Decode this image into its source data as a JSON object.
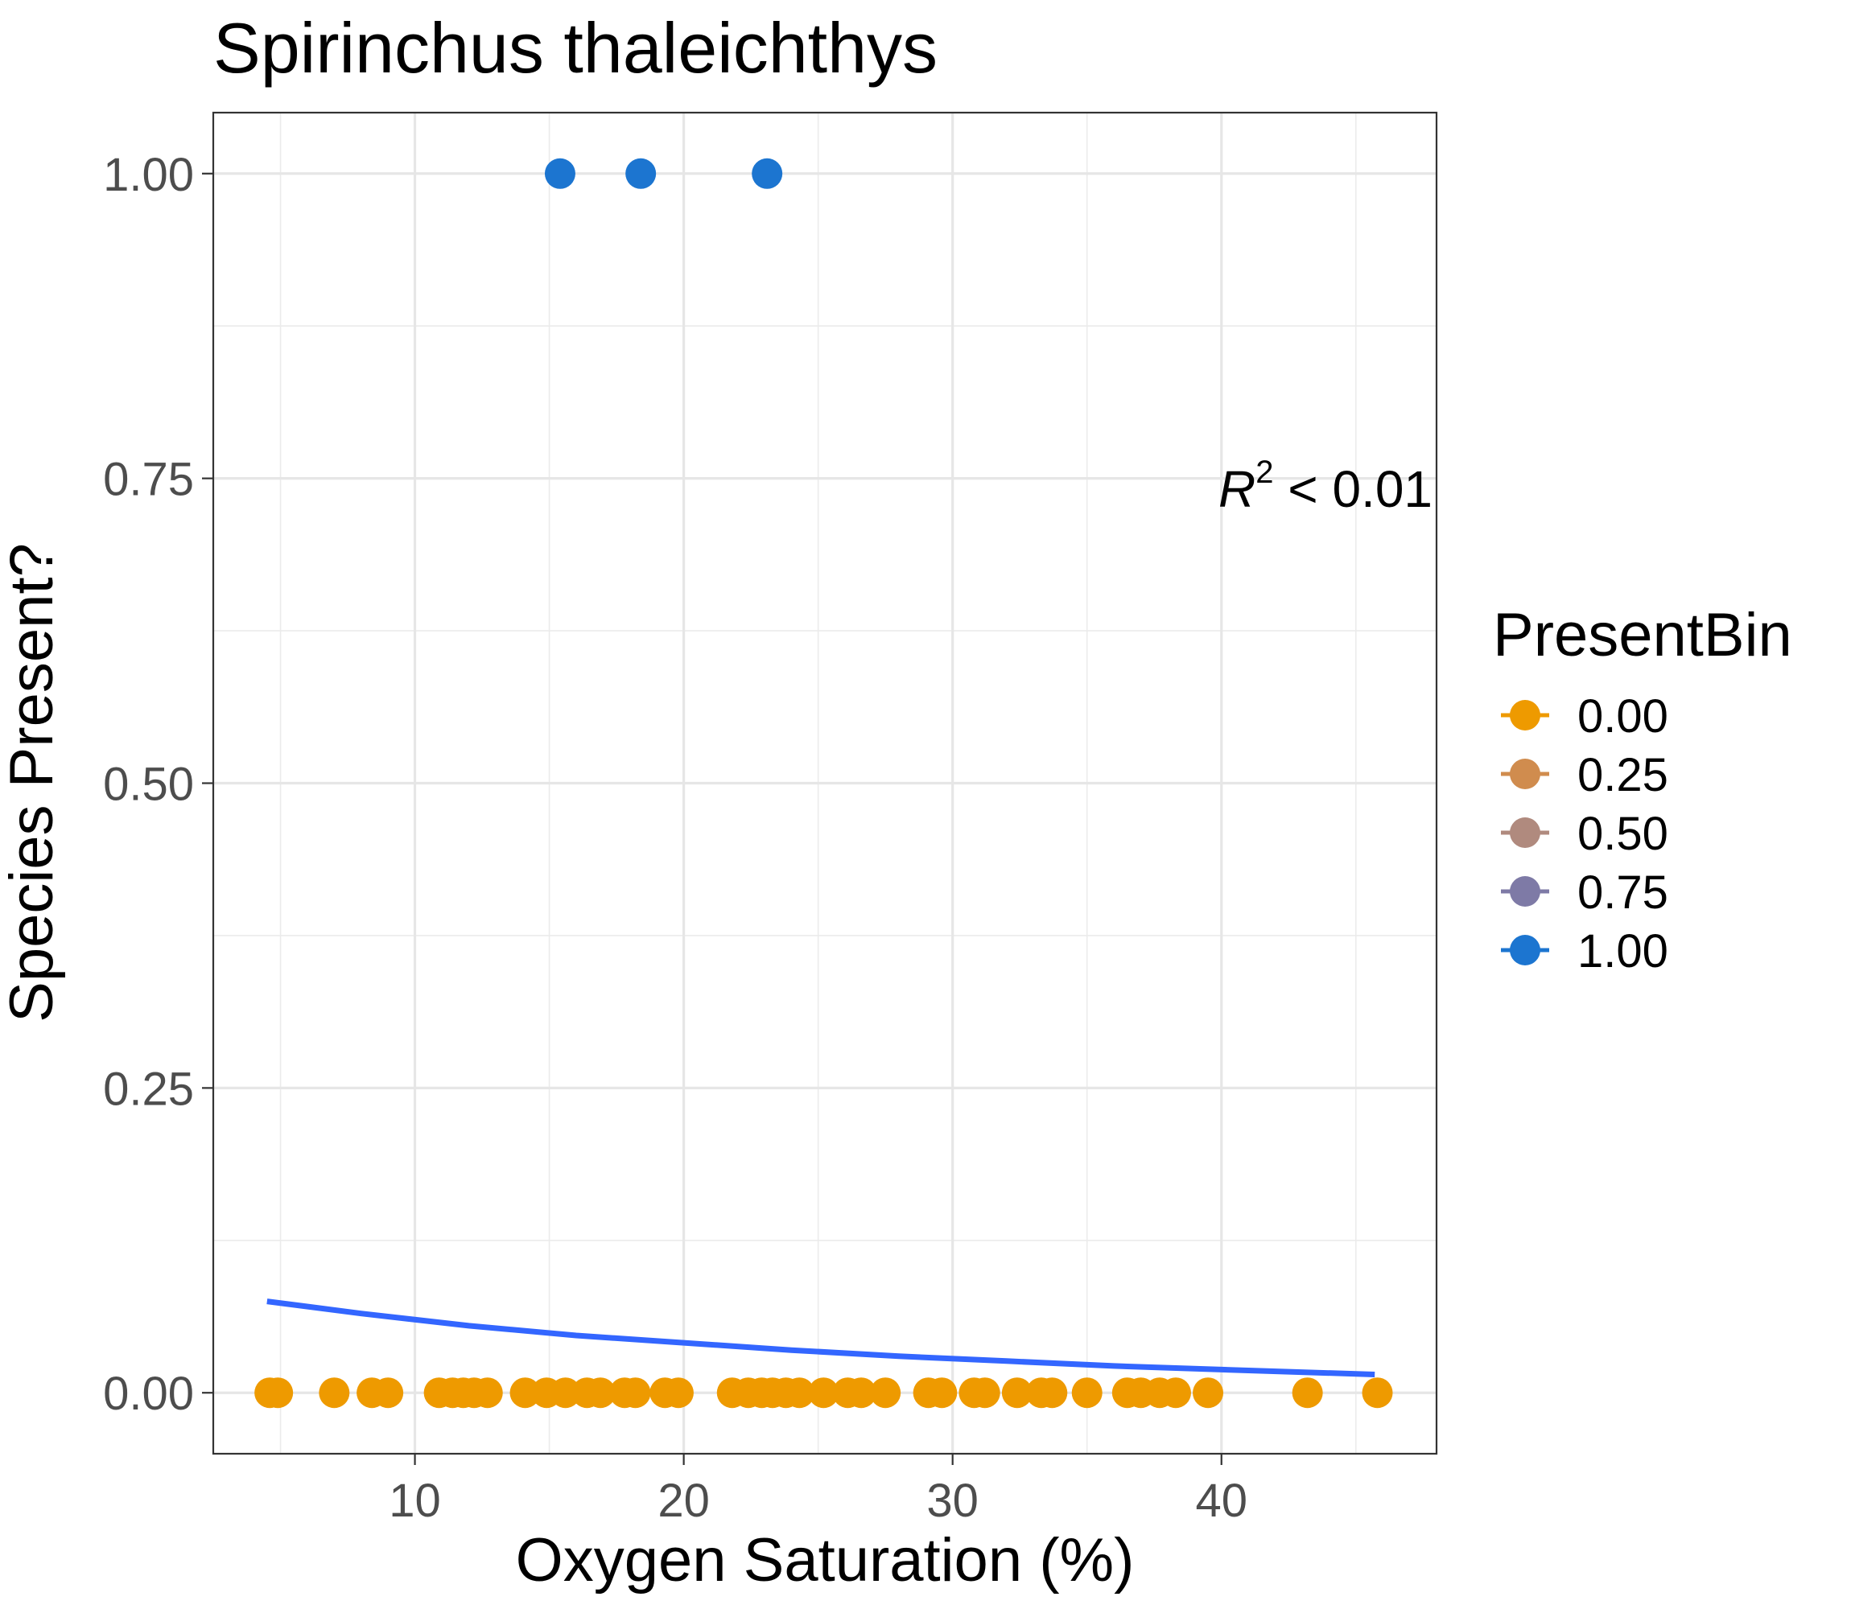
{
  "chart_data": {
    "type": "scatter",
    "title": "Spirinchus thaleichthys",
    "xlabel": "Oxygen Saturation (%)",
    "ylabel": "Species Present?",
    "xlim": [
      2.5,
      48.0
    ],
    "ylim": [
      -0.05,
      1.05
    ],
    "x_ticks": [
      10,
      20,
      30,
      40
    ],
    "x_tick_labels": [
      "10",
      "20",
      "30",
      "40"
    ],
    "y_ticks": [
      0,
      0.25,
      0.5,
      0.75,
      1.0
    ],
    "y_tick_labels": [
      "0.00",
      "0.25",
      "0.50",
      "0.75",
      "1.00"
    ],
    "grid": true,
    "annotation": {
      "prefix": "R",
      "superscript": "2",
      "suffix": " < 0.01"
    },
    "legend": {
      "title": "PresentBin",
      "placement": "right",
      "entries": [
        {
          "label": "0.00",
          "color": "#EE9A00"
        },
        {
          "label": "0.25",
          "color": "#D08C4E"
        },
        {
          "label": "0.50",
          "color": "#B08A7E"
        },
        {
          "label": "0.75",
          "color": "#7E7AA6"
        },
        {
          "label": "1.00",
          "color": "#1C75D0"
        }
      ]
    },
    "series": [
      {
        "bin": "1.00",
        "color": "#1C75D0",
        "points": [
          [
            15.4,
            1
          ],
          [
            18.4,
            1
          ],
          [
            23.1,
            1
          ]
        ]
      },
      {
        "bin": "0.00",
        "color": "#EE9A00",
        "points": [
          [
            4.6,
            0
          ],
          [
            4.9,
            0
          ],
          [
            7.0,
            0
          ],
          [
            8.4,
            0
          ],
          [
            9.0,
            0
          ],
          [
            10.9,
            0
          ],
          [
            11.4,
            0
          ],
          [
            11.8,
            0
          ],
          [
            12.2,
            0
          ],
          [
            12.7,
            0
          ],
          [
            14.1,
            0
          ],
          [
            14.9,
            0
          ],
          [
            15.6,
            0
          ],
          [
            16.4,
            0
          ],
          [
            16.9,
            0
          ],
          [
            17.8,
            0
          ],
          [
            18.2,
            0
          ],
          [
            19.3,
            0
          ],
          [
            19.8,
            0
          ],
          [
            21.8,
            0
          ],
          [
            22.4,
            0
          ],
          [
            22.9,
            0
          ],
          [
            23.3,
            0
          ],
          [
            23.8,
            0
          ],
          [
            24.3,
            0
          ],
          [
            25.2,
            0
          ],
          [
            26.1,
            0
          ],
          [
            26.6,
            0
          ],
          [
            27.5,
            0
          ],
          [
            29.1,
            0
          ],
          [
            29.6,
            0
          ],
          [
            30.8,
            0
          ],
          [
            31.2,
            0
          ],
          [
            32.4,
            0
          ],
          [
            33.3,
            0
          ],
          [
            33.7,
            0
          ],
          [
            35.0,
            0
          ],
          [
            36.5,
            0
          ],
          [
            37.0,
            0
          ],
          [
            37.7,
            0
          ],
          [
            38.3,
            0
          ],
          [
            39.5,
            0
          ],
          [
            43.2,
            0
          ],
          [
            45.8,
            0
          ]
        ]
      }
    ],
    "fit_line": {
      "color": "#3366FF",
      "x": [
        4.5,
        8,
        12,
        16,
        20,
        24,
        28,
        32,
        36,
        40,
        45.7
      ],
      "y": [
        0.075,
        0.065,
        0.055,
        0.047,
        0.041,
        0.035,
        0.03,
        0.026,
        0.022,
        0.019,
        0.015
      ]
    }
  }
}
